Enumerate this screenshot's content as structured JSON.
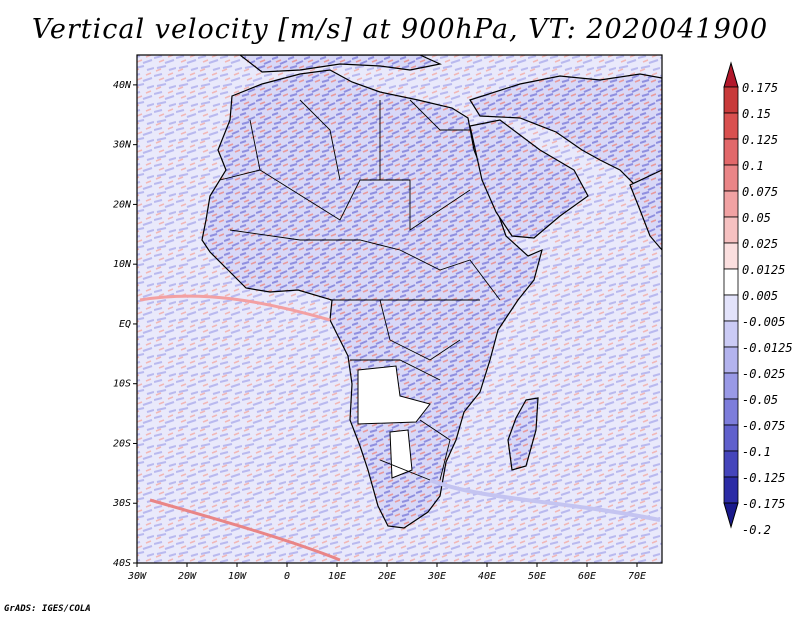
{
  "title": "Vertical velocity [m/s] at 900hPa, VT: 2020041900",
  "credit": "GrADS: IGES/COLA",
  "map": {
    "lat_labels": [
      "40N",
      "30N",
      "20N",
      "10N",
      "EQ",
      "10S",
      "20S",
      "30S",
      "40S"
    ],
    "lon_labels": [
      "30W",
      "20W",
      "10W",
      "0",
      "10E",
      "20E",
      "30E",
      "40E",
      "50E",
      "60E",
      "70E"
    ],
    "lat_values": [
      40,
      30,
      20,
      10,
      0,
      -10,
      -20,
      -30,
      -40
    ],
    "lon_values": [
      -30,
      -20,
      -10,
      0,
      10,
      20,
      30,
      40,
      50,
      60,
      70
    ],
    "extent": {
      "lon_min": -30,
      "lon_max": 75,
      "lat_min": -40,
      "lat_max": 45
    }
  },
  "colorbar": {
    "labels": [
      "0.175",
      "0.15",
      "0.125",
      "0.1",
      "0.075",
      "0.05",
      "0.025",
      "0.0125",
      "0.005",
      "-0.005",
      "-0.0125",
      "-0.025",
      "-0.05",
      "-0.075",
      "-0.1",
      "-0.125",
      "-0.175",
      "-0.2"
    ],
    "colors": [
      "#b2182b",
      "#c83a3a",
      "#d9504f",
      "#e2686a",
      "#ea8587",
      "#f1a2a3",
      "#f6c1c1",
      "#fbdfdf",
      "#ffffff",
      "#e3e3fb",
      "#cbcbf5",
      "#b3b3ee",
      "#9999e6",
      "#7d7ddb",
      "#6060cc",
      "#4545bb",
      "#2c2ca6",
      "#1a1a8c"
    ]
  }
}
